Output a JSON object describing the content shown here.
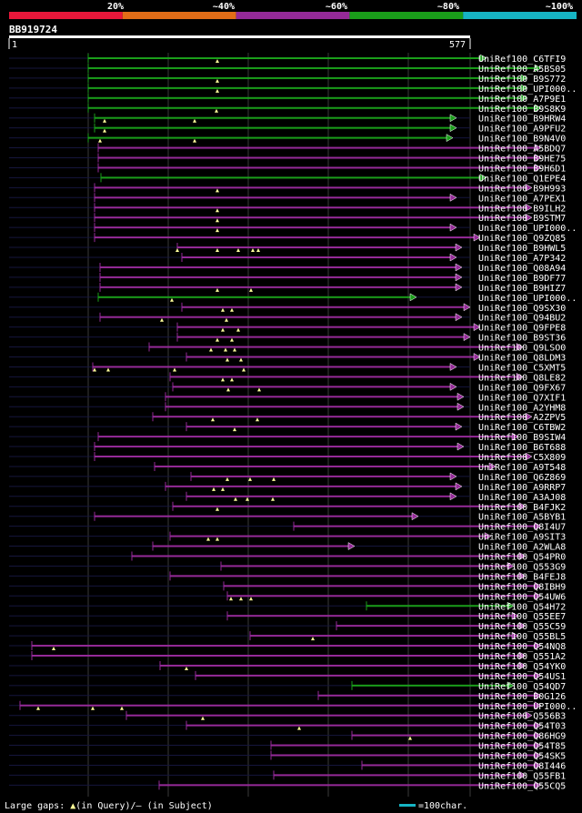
{
  "chart_data": {
    "type": "alignment",
    "title": "BB919724",
    "query_length": 577,
    "ruler": {
      "start": "1",
      "end": "577"
    },
    "legend": {
      "items": [
        {
          "label": "20%",
          "color": "#e8173a"
        },
        {
          "label": "~40%",
          "color": "#e26d17"
        },
        {
          "label": "~60%",
          "color": "#952a98"
        },
        {
          "label": "~80%",
          "color": "#1a9e1a"
        },
        {
          "label": "~100%",
          "color": "#16b4c4"
        }
      ]
    },
    "footer": {
      "gaps_prefix": "Large gaps: ",
      "gaps_query": "(in Query)/",
      "gaps_dash": "–",
      "gaps_subject": " (in Subject)",
      "scale_text": "=100char."
    },
    "hits": [
      {
        "id": "UniRef100_C6TFI9",
        "s": 97,
        "e": 535,
        "c": "G",
        "t": [
          239
        ]
      },
      {
        "id": "UniRef100_A5BS05",
        "s": 97,
        "e": 595,
        "c": "G",
        "t": []
      },
      {
        "id": "UniRef100_B9S772",
        "s": 97,
        "e": 580,
        "c": "G",
        "t": [
          239
        ]
      },
      {
        "id": "UniRef100_UPI000..",
        "s": 97,
        "e": 580,
        "c": "G",
        "t": [
          239
        ]
      },
      {
        "id": "UniRef100_A7P9E1",
        "s": 97,
        "e": 580,
        "c": "G",
        "t": []
      },
      {
        "id": "UniRef100_B9S8K9",
        "s": 97,
        "e": 595,
        "c": "G",
        "t": [
          238
        ]
      },
      {
        "id": "UniRef100_B9HRW4",
        "s": 104,
        "e": 502,
        "c": "G",
        "t": [
          115,
          214
        ]
      },
      {
        "id": "UniRef100_A9PFU2",
        "s": 104,
        "e": 502,
        "c": "G",
        "t": [
          115
        ]
      },
      {
        "id": "UniRef100_B9N4V0",
        "s": 97,
        "e": 498,
        "c": "G",
        "t": [
          110,
          214
        ]
      },
      {
        "id": "UniRef100_A5BDQ7",
        "s": 108,
        "e": 595,
        "c": "P",
        "t": []
      },
      {
        "id": "UniRef100_B9HE75",
        "s": 108,
        "e": 595,
        "c": "P",
        "t": []
      },
      {
        "id": "UniRef100_B9H6D1",
        "s": 108,
        "e": 595,
        "c": "P",
        "t": []
      },
      {
        "id": "UniRef100_Q1EPE4",
        "s": 111,
        "e": 535,
        "c": "G",
        "t": []
      },
      {
        "id": "UniRef100_B9H993",
        "s": 104,
        "e": 585,
        "c": "P",
        "t": [
          239
        ]
      },
      {
        "id": "UniRef100_A7PEX1",
        "s": 104,
        "e": 502,
        "c": "P",
        "t": []
      },
      {
        "id": "UniRef100_B9ILH2",
        "s": 104,
        "e": 585,
        "c": "P",
        "t": [
          239
        ]
      },
      {
        "id": "UniRef100_B9STM7",
        "s": 104,
        "e": 585,
        "c": "P",
        "t": [
          239
        ]
      },
      {
        "id": "UniRef100_UPI000..",
        "s": 104,
        "e": 502,
        "c": "P",
        "t": [
          239
        ]
      },
      {
        "id": "UniRef100_Q9ZQ85",
        "s": 104,
        "e": 528,
        "c": "P",
        "t": []
      },
      {
        "id": "UniRef100_B9HWL5",
        "s": 195,
        "e": 508,
        "c": "P",
        "t": [
          195,
          239,
          262,
          278,
          284
        ]
      },
      {
        "id": "UniRef100_A7P342",
        "s": 200,
        "e": 502,
        "c": "P",
        "t": []
      },
      {
        "id": "UniRef100_Q08A94",
        "s": 110,
        "e": 508,
        "c": "P",
        "t": []
      },
      {
        "id": "UniRef100_B9DF77",
        "s": 110,
        "e": 508,
        "c": "P",
        "t": []
      },
      {
        "id": "UniRef100_B9HIZ7",
        "s": 110,
        "e": 508,
        "c": "P",
        "t": [
          239,
          276
        ]
      },
      {
        "id": "UniRef100_UPI000..",
        "s": 108,
        "e": 458,
        "c": "G",
        "t": [
          189
        ]
      },
      {
        "id": "UniRef100_Q9SX30",
        "s": 200,
        "e": 517,
        "c": "P",
        "t": [
          245,
          255
        ]
      },
      {
        "id": "UniRef100_Q94BU2",
        "s": 110,
        "e": 508,
        "c": "P",
        "t": [
          178,
          249
        ]
      },
      {
        "id": "UniRef100_Q9FPE8",
        "s": 195,
        "e": 528,
        "c": "P",
        "t": [
          245,
          262
        ]
      },
      {
        "id": "UniRef100_B9ST36",
        "s": 195,
        "e": 517,
        "c": "P",
        "t": [
          239,
          255
        ]
      },
      {
        "id": "UniRef100_Q9LSO0",
        "s": 164,
        "e": 575,
        "c": "P",
        "t": [
          232,
          248,
          258
        ]
      },
      {
        "id": "UniRef100_Q8LDM3",
        "s": 205,
        "e": 528,
        "c": "P",
        "t": [
          250,
          265
        ]
      },
      {
        "id": "UniRef100_C5XMT5",
        "s": 102,
        "e": 502,
        "c": "P",
        "t": [
          104,
          119,
          192,
          268
        ]
      },
      {
        "id": "UniRef100_Q8LE82",
        "s": 187,
        "e": 575,
        "c": "P",
        "t": [
          245,
          255
        ]
      },
      {
        "id": "UniRef100_Q9FX67",
        "s": 190,
        "e": 502,
        "c": "P",
        "t": [
          251,
          285
        ]
      },
      {
        "id": "UniRef100_Q7XIF1",
        "s": 182,
        "e": 510,
        "c": "P",
        "t": []
      },
      {
        "id": "UniRef100_A2YHM8",
        "s": 182,
        "e": 510,
        "c": "P",
        "t": []
      },
      {
        "id": "UniRef100_A2ZPV5",
        "s": 168,
        "e": 585,
        "c": "P",
        "t": [
          234,
          283
        ]
      },
      {
        "id": "UniRef100_C6TBW2",
        "s": 205,
        "e": 508,
        "c": "P",
        "t": [
          258
        ]
      },
      {
        "id": "UniRef100_B9SIW4",
        "s": 108,
        "e": 570,
        "c": "P",
        "t": []
      },
      {
        "id": "UniRef100_B6T688",
        "s": 104,
        "e": 510,
        "c": "P",
        "t": []
      },
      {
        "id": "UniRef100_C5X809",
        "s": 104,
        "e": 585,
        "c": "P",
        "t": []
      },
      {
        "id": "UniRef100_A9T548",
        "s": 170,
        "e": 545,
        "c": "P",
        "t": []
      },
      {
        "id": "UniRef100_Q6Z869",
        "s": 210,
        "e": 502,
        "c": "P",
        "t": [
          250,
          275,
          301
        ]
      },
      {
        "id": "UniRef100_A9RRP7",
        "s": 182,
        "e": 508,
        "c": "P",
        "t": [
          235,
          245
        ]
      },
      {
        "id": "UniRef100_A3AJ08",
        "s": 205,
        "e": 502,
        "c": "P",
        "t": [
          259,
          272,
          300
        ]
      },
      {
        "id": "UniRef100_B4FJK2",
        "s": 190,
        "e": 578,
        "c": "P",
        "t": [
          239
        ]
      },
      {
        "id": "UniRef100_A5BYB1",
        "s": 104,
        "e": 460,
        "c": "P",
        "t": []
      },
      {
        "id": "UniRef100_Q8I4U7",
        "s": 323,
        "e": 595,
        "c": "P",
        "t": []
      },
      {
        "id": "UniRef100_A9SIT3",
        "s": 187,
        "e": 540,
        "c": "P",
        "t": [
          239,
          229
        ]
      },
      {
        "id": "UniRef100_A2WLA8",
        "s": 168,
        "e": 390,
        "c": "P",
        "t": []
      },
      {
        "id": "UniRef100_Q54PR0",
        "s": 145,
        "e": 578,
        "c": "P",
        "t": []
      },
      {
        "id": "UniRef100_Q553G9",
        "s": 243,
        "e": 565,
        "c": "P",
        "t": []
      },
      {
        "id": "UniRef100_B4FEJ8",
        "s": 187,
        "e": 578,
        "c": "P",
        "t": []
      },
      {
        "id": "UniRef100_Q8IBH9",
        "s": 246,
        "e": 595,
        "c": "P",
        "t": []
      },
      {
        "id": "UniRef100_Q54UW6",
        "s": 250,
        "e": 595,
        "c": "P",
        "t": [
          254,
          265,
          276
        ]
      },
      {
        "id": "UniRef100_Q54H72",
        "s": 403,
        "e": 565,
        "c": "G",
        "t": []
      },
      {
        "id": "UniRef100_Q55EE7",
        "s": 250,
        "e": 570,
        "c": "P",
        "t": []
      },
      {
        "id": "UniRef100_Q55C59",
        "s": 370,
        "e": 578,
        "c": "P",
        "t": []
      },
      {
        "id": "UniRef100_Q55BL5",
        "s": 275,
        "e": 570,
        "c": "P",
        "t": [
          344
        ]
      },
      {
        "id": "UniRef100_Q54NQ8",
        "s": 35,
        "e": 595,
        "c": "P",
        "t": [
          59
        ]
      },
      {
        "id": "UniRef100_Q551A2",
        "s": 35,
        "e": 578,
        "c": "P",
        "t": []
      },
      {
        "id": "UniRef100_Q54YK0",
        "s": 176,
        "e": 578,
        "c": "P",
        "t": [
          205
        ]
      },
      {
        "id": "UniRef100_Q54US1",
        "s": 215,
        "e": 595,
        "c": "P",
        "t": []
      },
      {
        "id": "UniRef100_Q54QD7",
        "s": 387,
        "e": 565,
        "c": "G",
        "t": []
      },
      {
        "id": "UniRef100_B0G126",
        "s": 350,
        "e": 595,
        "c": "P",
        "t": []
      },
      {
        "id": "UniRef100_UPI000..",
        "s": 22,
        "e": 595,
        "c": "P",
        "t": [
          42,
          102,
          134
        ]
      },
      {
        "id": "UniRef100_Q556B3",
        "s": 139,
        "e": 585,
        "c": "P",
        "t": [
          223
        ]
      },
      {
        "id": "UniRef100_Q54T03",
        "s": 205,
        "e": 595,
        "c": "P",
        "t": [
          329
        ]
      },
      {
        "id": "UniRef100_Q86HG9",
        "s": 387,
        "e": 595,
        "c": "P",
        "t": [
          451
        ]
      },
      {
        "id": "UniRef100_Q54T85",
        "s": 298,
        "e": 595,
        "c": "P",
        "t": []
      },
      {
        "id": "UniRef100_Q54SK5",
        "s": 298,
        "e": 595,
        "c": "P",
        "t": []
      },
      {
        "id": "UniRef100_Q8I446",
        "s": 398,
        "e": 595,
        "c": "P",
        "t": []
      },
      {
        "id": "UniRef100_Q55FB1",
        "s": 301,
        "e": 578,
        "c": "P",
        "t": []
      },
      {
        "id": "UniRef100_Q55CQ5",
        "s": 175,
        "e": 595,
        "c": "P",
        "t": []
      }
    ]
  }
}
